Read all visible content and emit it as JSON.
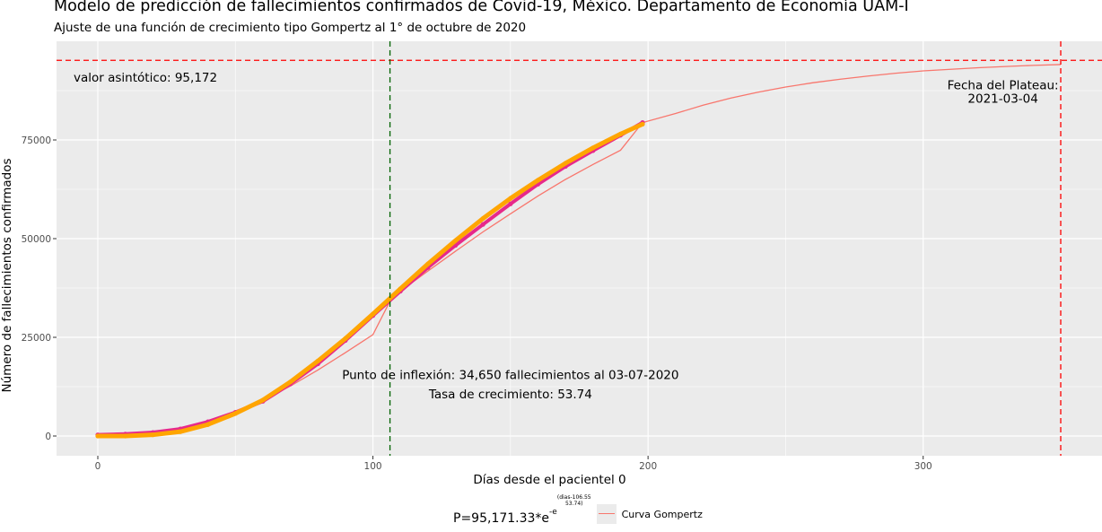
{
  "chart_data": {
    "type": "line",
    "title": "Modelo de predicción de fallecimientos confirmados de Covid-19, México. Departamento de Economía UAM-I",
    "subtitle": "Ajuste de una función de crecimiento tipo Gompertz al 1° de octubre de 2020",
    "xlabel": "Días desde el pacientel 0",
    "ylabel": "Número de fallecimientos confirmados",
    "xlim": [
      -15,
      365
    ],
    "ylim": [
      -5000,
      100000
    ],
    "x_ticks": [
      0,
      100,
      200,
      300
    ],
    "y_ticks": [
      0,
      25000,
      50000,
      75000
    ],
    "x_tick_labels": [
      "0",
      "100",
      "200",
      "300"
    ],
    "y_tick_labels": [
      "0",
      "25000",
      "50000",
      "75000"
    ],
    "grid": true,
    "legend_position": "bottom",
    "gompertz": {
      "asymptote": 95171.33,
      "inflection_day": 106.55,
      "rate": 53.74,
      "x_range": [
        0,
        350
      ]
    },
    "series": [
      {
        "name": "Curva Gompertz",
        "color": "#f8766d",
        "style": "line",
        "x": [
          0,
          10,
          20,
          30,
          40,
          50,
          60,
          70,
          80,
          90,
          100,
          106.55,
          110,
          120,
          130,
          140,
          150,
          160,
          170,
          180,
          190,
          198,
          210,
          220,
          230,
          240,
          250,
          260,
          270,
          280,
          290,
          300,
          310,
          320,
          330,
          340,
          350
        ],
        "y": [
          122,
          376,
          936,
          1979,
          3643,
          5996,
          9025,
          12645,
          16724,
          21117,
          25674,
          34650,
          36700,
          41800,
          46800,
          51700,
          56300,
          60800,
          65000,
          68800,
          72400,
          79400,
          81700,
          83800,
          85600,
          87100,
          88400,
          89500,
          90400,
          91200,
          91900,
          92500,
          92900,
          93300,
          93600,
          93900,
          94100
        ]
      },
      {
        "color": "#e7298a",
        "style": "points",
        "x": [
          0,
          10,
          20,
          30,
          40,
          50,
          60,
          70,
          80,
          90,
          100,
          110,
          120,
          130,
          140,
          150,
          160,
          170,
          180,
          190,
          198
        ],
        "y": [
          300,
          500,
          900,
          1800,
          3600,
          6000,
          8800,
          13200,
          18300,
          24200,
          30500,
          36700,
          42700,
          48300,
          53600,
          58800,
          63800,
          68300,
          72300,
          76200,
          79400
        ]
      },
      {
        "color": "#ffa500",
        "style": "points",
        "x": [
          0,
          10,
          20,
          30,
          40,
          50,
          60,
          70,
          80,
          90,
          100,
          110,
          120,
          130,
          140,
          150,
          160,
          170,
          180,
          190,
          198
        ],
        "y": [
          0,
          0,
          300,
          1100,
          2900,
          5700,
          9100,
          13700,
          19000,
          24700,
          30900,
          37300,
          43600,
          49500,
          55100,
          60200,
          64800,
          69100,
          73000,
          76500,
          79000
        ]
      }
    ],
    "reference_lines": [
      {
        "orientation": "horizontal",
        "value": 95172,
        "color": "#ff0000",
        "dash": "dashed"
      },
      {
        "orientation": "vertical",
        "value": 106.2,
        "color": "#006400",
        "dash": "dashed"
      },
      {
        "orientation": "vertical",
        "value": 350,
        "color": "#ff0000",
        "dash": "dashed"
      }
    ],
    "annotations": [
      {
        "text": "valor asintótico: 95,172",
        "x": 15,
        "y": 89800
      },
      {
        "text": "Fecha del Plateau:",
        "x": 329,
        "y": 87800
      },
      {
        "text": "2021-03-04",
        "x": 329,
        "y": 84400
      },
      {
        "text": "Punto de inflexión: 34,650 fallecimientos al 03-07-2020",
        "x": 150,
        "y": 14400
      },
      {
        "text": "Tasa de crecimiento: 53.74",
        "x": 150,
        "y": 9500
      }
    ],
    "legend": {
      "formula_base": "P=95,171.33*e",
      "formula_exp": "-e",
      "formula_num": "dias-106.55",
      "formula_den": "53.74",
      "entry": "Curva Gompertz"
    }
  }
}
